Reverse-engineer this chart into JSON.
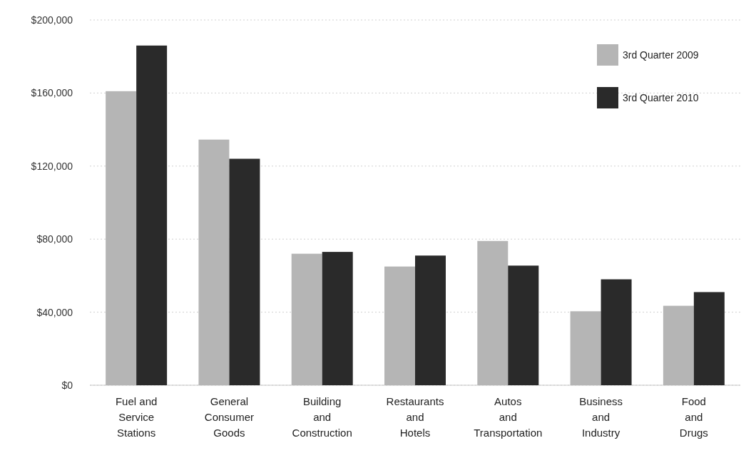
{
  "chart_data": {
    "type": "bar",
    "categories": [
      "Fuel and\nService\nStations",
      "General\nConsumer\nGoods",
      "Building\nand\nConstruction",
      "Restaurants\nand\nHotels",
      "Autos\nand\nTransportation",
      "Business\nand\nIndustry",
      "Food\nand\nDrugs"
    ],
    "series": [
      {
        "name": "3rd Quarter 2009",
        "color": "#b5b5b5",
        "values": [
          161000,
          134500,
          72000,
          65000,
          79000,
          40500,
          43500
        ]
      },
      {
        "name": "3rd Quarter 2010",
        "color": "#2a2a2a",
        "values": [
          186000,
          124000,
          73000,
          71000,
          65500,
          58000,
          51000
        ]
      }
    ],
    "ylim": [
      0,
      200000
    ],
    "yticks": [
      {
        "value": 0,
        "label": "$0"
      },
      {
        "value": 40000,
        "label": "$40,000"
      },
      {
        "value": 80000,
        "label": "$80,000"
      },
      {
        "value": 120000,
        "label": "$120,000"
      },
      {
        "value": 160000,
        "label": "$160,000"
      },
      {
        "value": 200000,
        "label": "$200,000"
      }
    ],
    "grid": "y",
    "legend": "top right"
  }
}
